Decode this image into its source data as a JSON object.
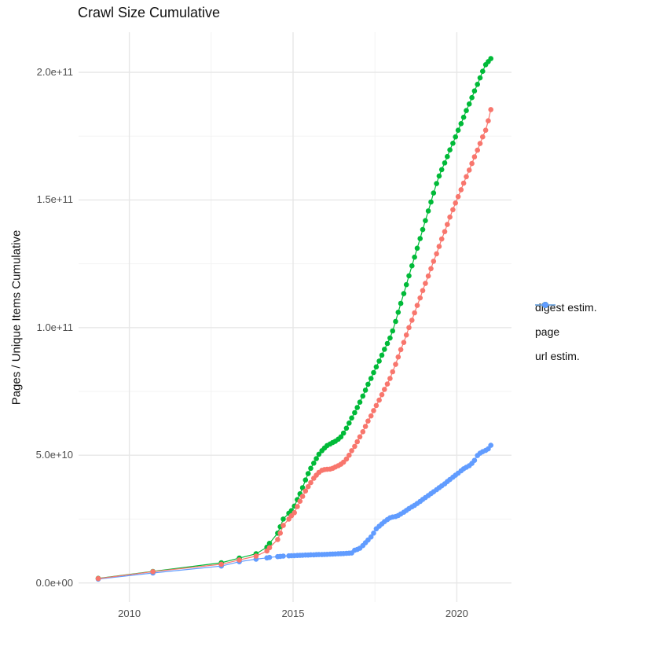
{
  "page": {
    "background": "#ffffff"
  },
  "chart_data": {
    "type": "line",
    "title": "Crawl Size Cumulative",
    "xlabel": "",
    "ylabel": "Pages / Unique Items Cumulative",
    "legend_position": "right",
    "grid": true,
    "value_unit": "1e9 pages / items (values below are billions)",
    "xlim": [
      2008.45,
      2021.67
    ],
    "ylim": [
      -7.5,
      215.7
    ],
    "x_ticks": {
      "major": [
        2010,
        2015,
        2020
      ],
      "major_labels": [
        "2010",
        "2015",
        "2020"
      ],
      "minor": [
        2012.5,
        2017.5
      ]
    },
    "y_ticks": {
      "major": [
        0,
        50,
        100,
        150,
        200
      ],
      "major_labels": [
        "0.0e+00",
        "5.0e+10",
        "1.0e+11",
        "1.5e+11",
        "2.0e+11"
      ],
      "minor": [
        25,
        75,
        125,
        175
      ]
    },
    "colors": {
      "major_grid": "#e7e7e7",
      "minor_grid": "#f3f3f3"
    },
    "series": [
      {
        "name": "digest estim.",
        "color": "#F8766D",
        "points": [
          [
            2009.05,
            1.7
          ],
          [
            2010.72,
            4.4
          ],
          [
            2012.81,
            7.3
          ],
          [
            2013.36,
            9.0
          ],
          [
            2013.87,
            10.5
          ],
          [
            2014.2,
            12.5
          ],
          [
            2014.28,
            13.8
          ],
          [
            2014.53,
            17.0
          ],
          [
            2014.61,
            19.5
          ],
          [
            2014.7,
            22.5
          ],
          [
            2014.87,
            25.0
          ],
          [
            2014.95,
            26.3
          ],
          [
            2015.04,
            27.5
          ],
          [
            2015.13,
            29.9
          ],
          [
            2015.21,
            32.0
          ],
          [
            2015.29,
            33.9
          ],
          [
            2015.38,
            36.0
          ],
          [
            2015.46,
            37.7
          ],
          [
            2015.54,
            39.3
          ],
          [
            2015.63,
            41.0
          ],
          [
            2015.71,
            42.2
          ],
          [
            2015.79,
            43.3
          ],
          [
            2015.88,
            44.1
          ],
          [
            2015.96,
            44.4
          ],
          [
            2016.04,
            44.5
          ],
          [
            2016.13,
            44.6
          ],
          [
            2016.21,
            44.9
          ],
          [
            2016.29,
            45.4
          ],
          [
            2016.38,
            45.9
          ],
          [
            2016.46,
            46.5
          ],
          [
            2016.54,
            47.3
          ],
          [
            2016.63,
            48.5
          ],
          [
            2016.71,
            50.0
          ],
          [
            2016.79,
            51.8
          ],
          [
            2016.88,
            53.5
          ],
          [
            2016.96,
            55.3
          ],
          [
            2017.04,
            57.2
          ],
          [
            2017.13,
            59.2
          ],
          [
            2017.21,
            61.3
          ],
          [
            2017.29,
            63.4
          ],
          [
            2017.38,
            65.4
          ],
          [
            2017.46,
            67.5
          ],
          [
            2017.54,
            69.5
          ],
          [
            2017.63,
            71.6
          ],
          [
            2017.71,
            73.7
          ],
          [
            2017.79,
            75.8
          ],
          [
            2017.88,
            77.9
          ],
          [
            2017.96,
            80.1
          ],
          [
            2018.04,
            82.7
          ],
          [
            2018.13,
            85.6
          ],
          [
            2018.21,
            88.5
          ],
          [
            2018.29,
            91.4
          ],
          [
            2018.38,
            94.2
          ],
          [
            2018.46,
            97.1
          ],
          [
            2018.54,
            100.0
          ],
          [
            2018.63,
            102.9
          ],
          [
            2018.71,
            105.8
          ],
          [
            2018.79,
            108.7
          ],
          [
            2018.88,
            111.6
          ],
          [
            2018.96,
            114.5
          ],
          [
            2019.04,
            117.3
          ],
          [
            2019.13,
            120.2
          ],
          [
            2019.21,
            123.1
          ],
          [
            2019.29,
            126.0
          ],
          [
            2019.38,
            128.9
          ],
          [
            2019.46,
            131.8
          ],
          [
            2019.54,
            134.7
          ],
          [
            2019.63,
            137.6
          ],
          [
            2019.71,
            140.4
          ],
          [
            2019.79,
            143.3
          ],
          [
            2019.88,
            146.2
          ],
          [
            2019.96,
            148.8
          ],
          [
            2020.04,
            151.3
          ],
          [
            2020.13,
            154.0
          ],
          [
            2020.21,
            156.6
          ],
          [
            2020.29,
            159.1
          ],
          [
            2020.38,
            161.7
          ],
          [
            2020.46,
            164.3
          ],
          [
            2020.54,
            166.9
          ],
          [
            2020.63,
            169.5
          ],
          [
            2020.71,
            172.1
          ],
          [
            2020.79,
            174.7
          ],
          [
            2020.88,
            177.3
          ],
          [
            2020.96,
            181.0
          ],
          [
            2021.04,
            185.4
          ]
        ]
      },
      {
        "name": "page",
        "color": "#00BA38",
        "points": [
          [
            2009.05,
            1.8
          ],
          [
            2010.72,
            4.5
          ],
          [
            2012.81,
            7.9
          ],
          [
            2013.36,
            9.7
          ],
          [
            2013.87,
            11.4
          ],
          [
            2014.2,
            14.0
          ],
          [
            2014.28,
            15.5
          ],
          [
            2014.53,
            19.5
          ],
          [
            2014.61,
            22.0
          ],
          [
            2014.7,
            25.0
          ],
          [
            2014.87,
            27.3
          ],
          [
            2014.95,
            28.3
          ],
          [
            2015.04,
            30.1
          ],
          [
            2015.13,
            32.6
          ],
          [
            2015.21,
            34.9
          ],
          [
            2015.29,
            37.3
          ],
          [
            2015.38,
            40.3
          ],
          [
            2015.46,
            42.8
          ],
          [
            2015.54,
            44.9
          ],
          [
            2015.63,
            46.9
          ],
          [
            2015.71,
            48.7
          ],
          [
            2015.79,
            50.4
          ],
          [
            2015.88,
            51.8
          ],
          [
            2015.96,
            52.8
          ],
          [
            2016.04,
            53.8
          ],
          [
            2016.13,
            54.4
          ],
          [
            2016.21,
            55.0
          ],
          [
            2016.29,
            55.5
          ],
          [
            2016.38,
            56.3
          ],
          [
            2016.46,
            57.2
          ],
          [
            2016.54,
            58.7
          ],
          [
            2016.63,
            60.6
          ],
          [
            2016.71,
            62.6
          ],
          [
            2016.79,
            64.6
          ],
          [
            2016.88,
            66.7
          ],
          [
            2016.96,
            68.7
          ],
          [
            2017.04,
            70.8
          ],
          [
            2017.13,
            73.2
          ],
          [
            2017.21,
            75.5
          ],
          [
            2017.29,
            77.8
          ],
          [
            2017.38,
            80.1
          ],
          [
            2017.46,
            82.4
          ],
          [
            2017.54,
            84.6
          ],
          [
            2017.63,
            86.9
          ],
          [
            2017.71,
            89.2
          ],
          [
            2017.79,
            91.5
          ],
          [
            2017.88,
            93.8
          ],
          [
            2017.96,
            95.9
          ],
          [
            2018.04,
            98.7
          ],
          [
            2018.13,
            102.4
          ],
          [
            2018.21,
            106.0
          ],
          [
            2018.29,
            109.5
          ],
          [
            2018.38,
            113.3
          ],
          [
            2018.46,
            116.8
          ],
          [
            2018.54,
            120.3
          ],
          [
            2018.63,
            124.2
          ],
          [
            2018.71,
            127.6
          ],
          [
            2018.79,
            131.1
          ],
          [
            2018.88,
            134.9
          ],
          [
            2018.96,
            138.4
          ],
          [
            2019.04,
            141.9
          ],
          [
            2019.13,
            145.7
          ],
          [
            2019.21,
            149.2
          ],
          [
            2019.29,
            152.7
          ],
          [
            2019.38,
            156.4
          ],
          [
            2019.46,
            159.4
          ],
          [
            2019.54,
            161.9
          ],
          [
            2019.63,
            164.5
          ],
          [
            2019.71,
            167.0
          ],
          [
            2019.79,
            169.6
          ],
          [
            2019.88,
            172.2
          ],
          [
            2019.96,
            174.7
          ],
          [
            2020.04,
            177.3
          ],
          [
            2020.13,
            179.9
          ],
          [
            2020.21,
            182.4
          ],
          [
            2020.29,
            185.0
          ],
          [
            2020.38,
            187.6
          ],
          [
            2020.46,
            190.1
          ],
          [
            2020.54,
            192.7
          ],
          [
            2020.63,
            195.3
          ],
          [
            2020.71,
            197.8
          ],
          [
            2020.79,
            200.4
          ],
          [
            2020.88,
            203.0
          ],
          [
            2020.96,
            204.2
          ],
          [
            2021.04,
            205.4
          ]
        ]
      },
      {
        "name": "url estim.",
        "color": "#619CFF",
        "points": [
          [
            2009.05,
            1.5
          ],
          [
            2010.72,
            3.9
          ],
          [
            2012.81,
            6.6
          ],
          [
            2013.36,
            8.3
          ],
          [
            2013.87,
            9.3
          ],
          [
            2014.2,
            9.8
          ],
          [
            2014.28,
            10.0
          ],
          [
            2014.53,
            10.3
          ],
          [
            2014.61,
            10.4
          ],
          [
            2014.7,
            10.5
          ],
          [
            2014.87,
            10.6
          ],
          [
            2014.95,
            10.65
          ],
          [
            2015.04,
            10.7
          ],
          [
            2015.13,
            10.75
          ],
          [
            2015.21,
            10.8
          ],
          [
            2015.29,
            10.85
          ],
          [
            2015.38,
            10.9
          ],
          [
            2015.46,
            10.9
          ],
          [
            2015.54,
            11.0
          ],
          [
            2015.63,
            11.0
          ],
          [
            2015.71,
            11.05
          ],
          [
            2015.79,
            11.1
          ],
          [
            2015.88,
            11.1
          ],
          [
            2015.96,
            11.15
          ],
          [
            2016.04,
            11.2
          ],
          [
            2016.13,
            11.25
          ],
          [
            2016.21,
            11.3
          ],
          [
            2016.29,
            11.35
          ],
          [
            2016.38,
            11.4
          ],
          [
            2016.46,
            11.45
          ],
          [
            2016.54,
            11.5
          ],
          [
            2016.63,
            11.6
          ],
          [
            2016.71,
            11.65
          ],
          [
            2016.79,
            11.7
          ],
          [
            2016.88,
            12.8
          ],
          [
            2016.96,
            13.1
          ],
          [
            2017.04,
            13.6
          ],
          [
            2017.13,
            14.6
          ],
          [
            2017.21,
            15.7
          ],
          [
            2017.29,
            16.8
          ],
          [
            2017.38,
            18.0
          ],
          [
            2017.46,
            19.5
          ],
          [
            2017.54,
            21.2
          ],
          [
            2017.63,
            22.2
          ],
          [
            2017.71,
            23.1
          ],
          [
            2017.79,
            24.0
          ],
          [
            2017.88,
            24.8
          ],
          [
            2017.96,
            25.5
          ],
          [
            2018.04,
            25.8
          ],
          [
            2018.13,
            26.0
          ],
          [
            2018.21,
            26.4
          ],
          [
            2018.29,
            27.0
          ],
          [
            2018.38,
            27.7
          ],
          [
            2018.46,
            28.4
          ],
          [
            2018.54,
            29.1
          ],
          [
            2018.63,
            29.8
          ],
          [
            2018.71,
            30.4
          ],
          [
            2018.79,
            31.1
          ],
          [
            2018.88,
            31.9
          ],
          [
            2018.96,
            32.7
          ],
          [
            2019.04,
            33.4
          ],
          [
            2019.13,
            34.2
          ],
          [
            2019.21,
            35.0
          ],
          [
            2019.29,
            35.7
          ],
          [
            2019.38,
            36.5
          ],
          [
            2019.46,
            37.3
          ],
          [
            2019.54,
            38.0
          ],
          [
            2019.63,
            38.8
          ],
          [
            2019.71,
            39.7
          ],
          [
            2019.79,
            40.5
          ],
          [
            2019.88,
            41.4
          ],
          [
            2019.96,
            42.2
          ],
          [
            2020.04,
            43.0
          ],
          [
            2020.13,
            43.9
          ],
          [
            2020.21,
            44.7
          ],
          [
            2020.29,
            45.3
          ],
          [
            2020.38,
            45.9
          ],
          [
            2020.46,
            46.8
          ],
          [
            2020.54,
            48.0
          ],
          [
            2020.63,
            49.9
          ],
          [
            2020.71,
            50.8
          ],
          [
            2020.79,
            51.4
          ],
          [
            2020.88,
            51.9
          ],
          [
            2020.96,
            52.5
          ],
          [
            2021.04,
            53.9
          ]
        ]
      }
    ]
  }
}
